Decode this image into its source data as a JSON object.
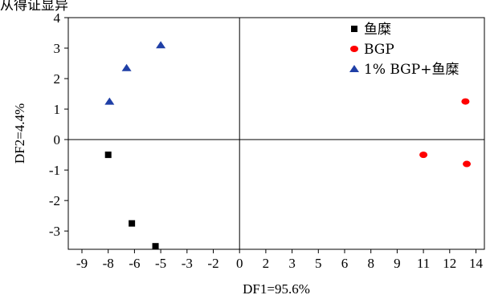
{
  "top_caption": "从得证显异",
  "chart_data": {
    "type": "scatter",
    "xlabel": "DF1=95.6%",
    "ylabel": "DF2=4.4%",
    "x_ticks": [
      "-9",
      "-8",
      "-6",
      "-5",
      "-3",
      "-2",
      "0",
      "2",
      "3",
      "5",
      "6",
      "8",
      "9",
      "11",
      "12",
      "14"
    ],
    "y_ticks": [
      "4",
      "3",
      "2",
      "1",
      "0",
      "-1",
      "-2",
      "-3"
    ],
    "ylim": [
      -3.6,
      4
    ],
    "x_axis_note": "categorical-looking equally spaced tick labels; first tick shown 1 step after axis start",
    "series": [
      {
        "name": "鱼糜",
        "marker": "square",
        "color": "#000000",
        "points": [
          {
            "x_tick": "-8",
            "y": -0.5
          },
          {
            "x_tick": "-6",
            "y": -2.75,
            "x_offset": -0.1
          },
          {
            "x_tick": "-5",
            "y": -3.5,
            "x_offset": -0.2
          }
        ]
      },
      {
        "name": "BGP",
        "marker": "circle",
        "color": "#ff0000",
        "points": [
          {
            "x_tick": "11",
            "y": -0.5
          },
          {
            "x_tick": "12",
            "y": 1.25,
            "x_offset": 0.6
          },
          {
            "x_tick": "14",
            "y": -0.8,
            "x_offset": -0.35
          }
        ]
      },
      {
        "name": "1% BGP+鱼糜",
        "marker": "triangle",
        "color": "#1f3fa6",
        "points": [
          {
            "x_tick": "-8",
            "y": 1.25,
            "x_offset": 0.05
          },
          {
            "x_tick": "-6",
            "y": 2.35,
            "x_offset": -0.3
          },
          {
            "x_tick": "-5",
            "y": 3.1
          }
        ]
      }
    ],
    "legend_position": "top-right",
    "grid": false
  }
}
